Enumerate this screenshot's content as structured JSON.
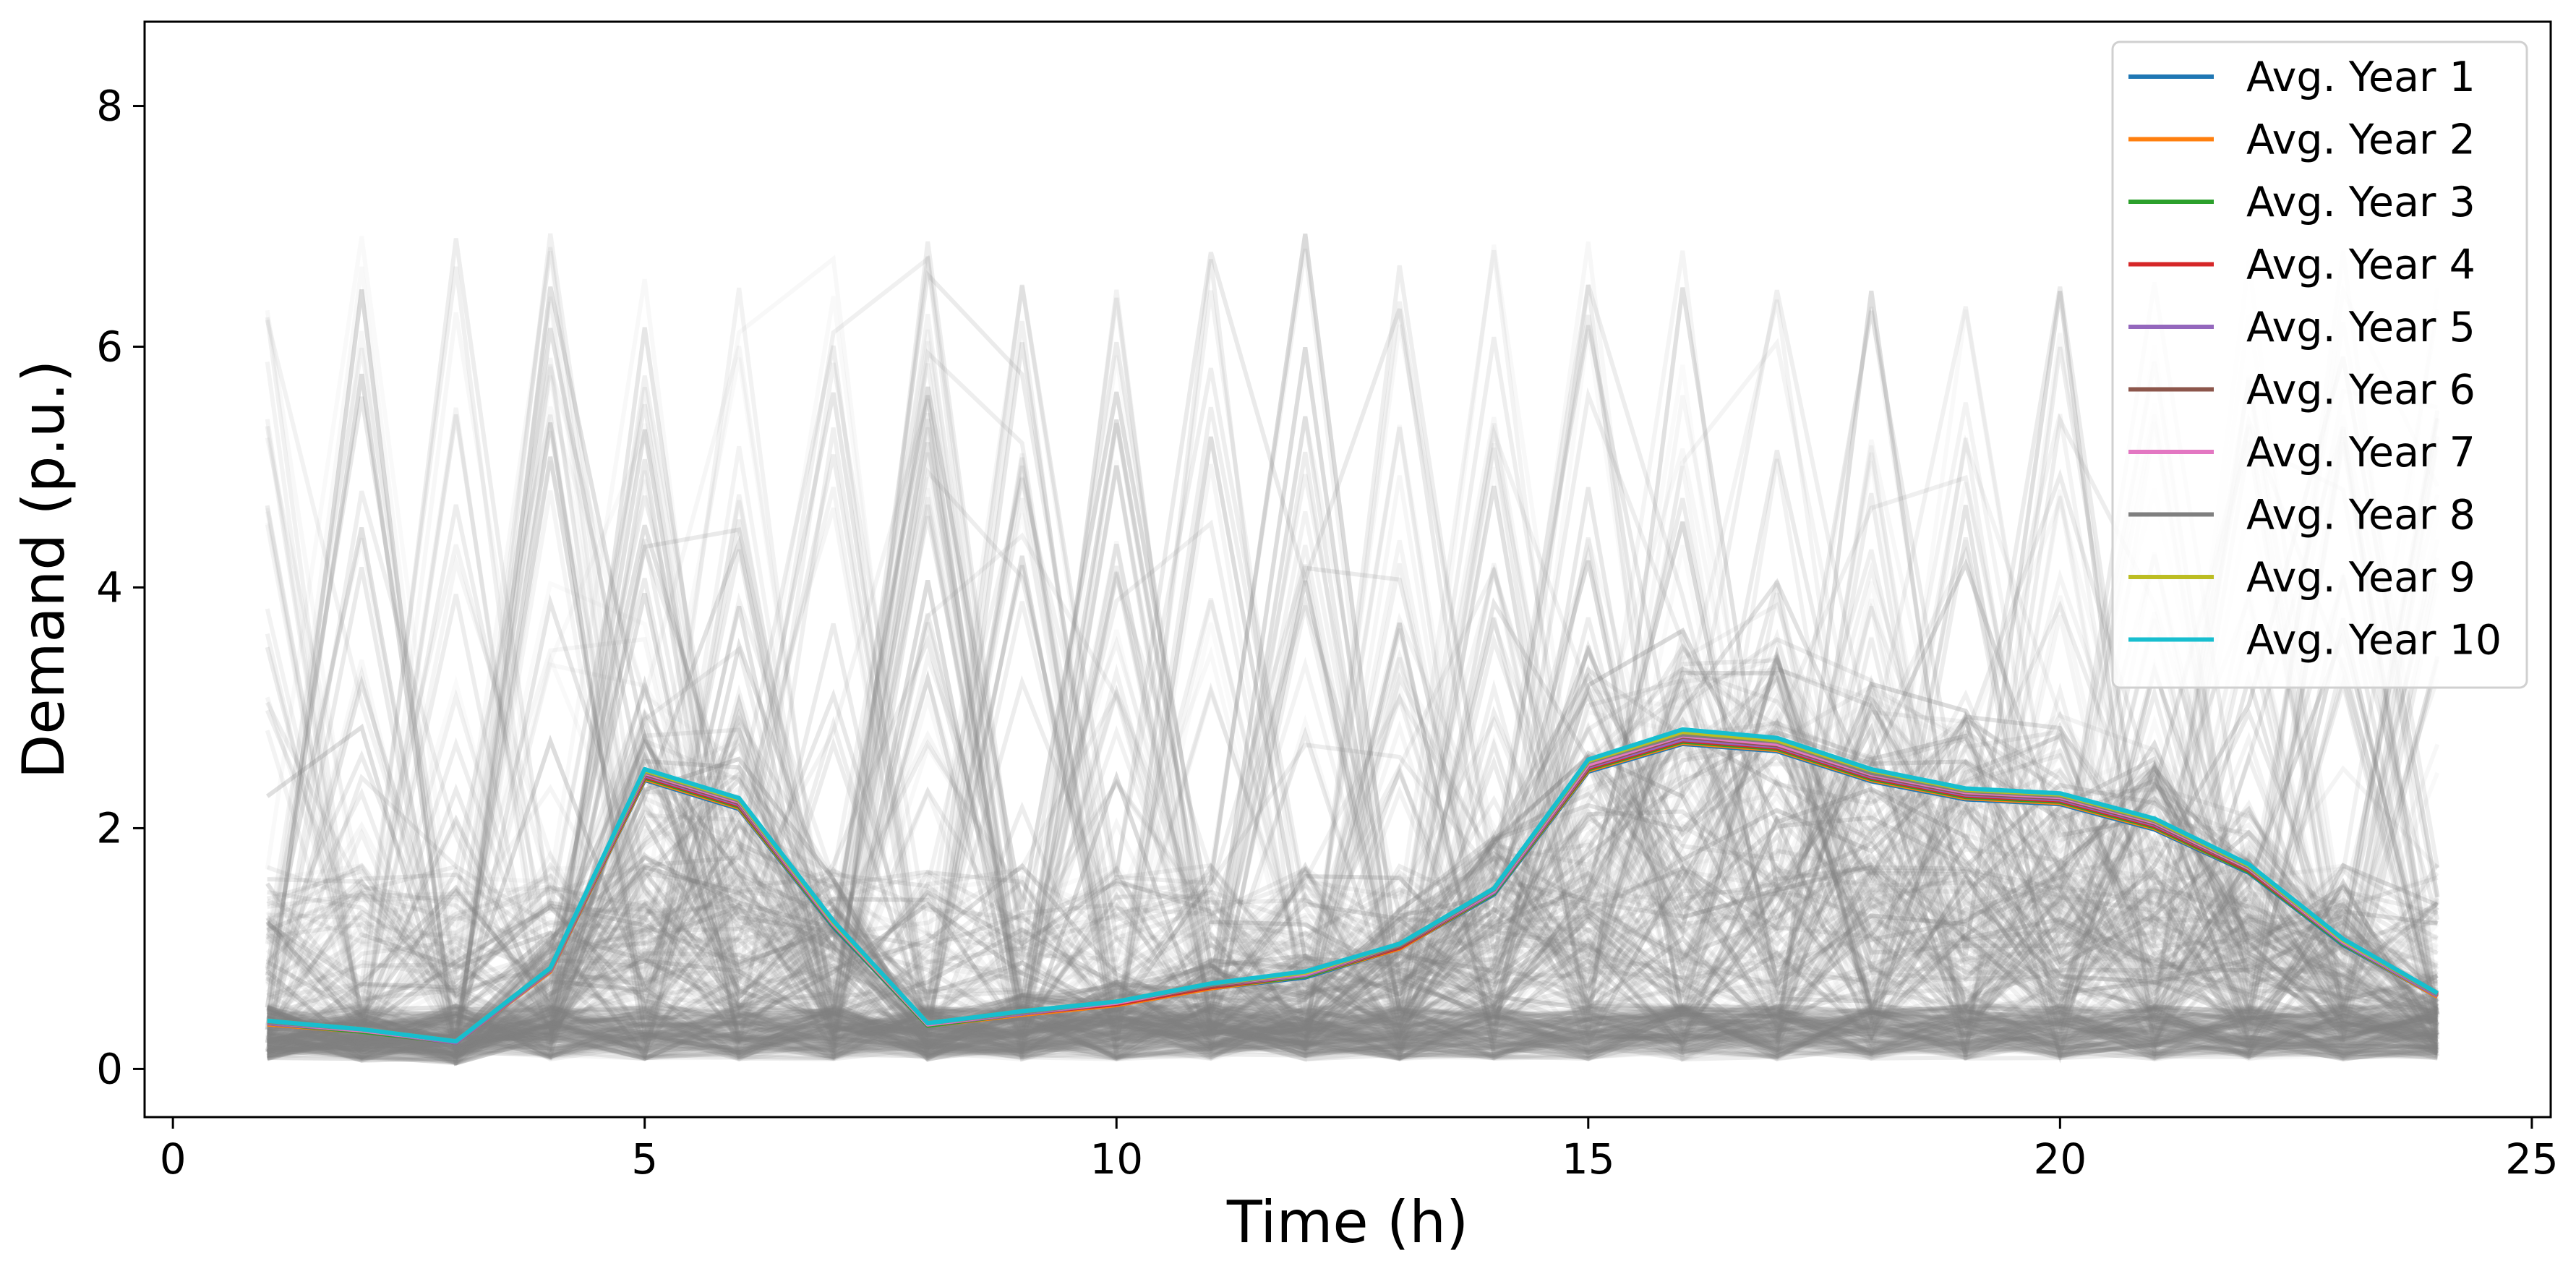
{
  "chart_data": {
    "type": "line",
    "title": "",
    "xlabel": "Time (h)",
    "ylabel": "Demand (p.u.)",
    "xlim": [
      -0.3,
      25.2
    ],
    "ylim": [
      -0.4,
      8.7
    ],
    "xticks": [
      0,
      5,
      10,
      15,
      20,
      25
    ],
    "yticks": [
      0,
      2,
      4,
      6,
      8
    ],
    "grid": false,
    "legend_position": "top-right",
    "x": [
      1,
      2,
      3,
      4,
      5,
      6,
      7,
      8,
      9,
      10,
      11,
      12,
      13,
      14,
      15,
      16,
      17,
      18,
      19,
      20,
      21,
      22,
      23,
      24
    ],
    "background_traces_color": "#808080",
    "series": [
      {
        "name": "Avg. Year 1",
        "color": "#1f77b4",
        "values": [
          0.37,
          0.31,
          0.22,
          0.81,
          2.4,
          2.16,
          1.18,
          0.36,
          0.45,
          0.53,
          0.67,
          0.76,
          1.0,
          1.45,
          2.47,
          2.7,
          2.64,
          2.39,
          2.24,
          2.2,
          1.99,
          1.63,
          1.03,
          0.6
        ]
      },
      {
        "name": "Avg. Year 2",
        "color": "#ff7f0e",
        "values": [
          0.37,
          0.31,
          0.22,
          0.81,
          2.41,
          2.17,
          1.19,
          0.36,
          0.45,
          0.53,
          0.67,
          0.77,
          1.0,
          1.46,
          2.48,
          2.71,
          2.65,
          2.4,
          2.25,
          2.21,
          2.0,
          1.64,
          1.04,
          0.6
        ]
      },
      {
        "name": "Avg. Year 3",
        "color": "#2ca02c",
        "values": [
          0.38,
          0.31,
          0.22,
          0.82,
          2.42,
          2.18,
          1.19,
          0.36,
          0.46,
          0.54,
          0.68,
          0.77,
          1.01,
          1.46,
          2.49,
          2.72,
          2.66,
          2.41,
          2.26,
          2.22,
          2.01,
          1.64,
          1.04,
          0.61
        ]
      },
      {
        "name": "Avg. Year 4",
        "color": "#d62728",
        "values": [
          0.38,
          0.32,
          0.22,
          0.82,
          2.43,
          2.19,
          1.2,
          0.37,
          0.46,
          0.54,
          0.68,
          0.78,
          1.01,
          1.47,
          2.5,
          2.73,
          2.67,
          2.42,
          2.27,
          2.23,
          2.02,
          1.65,
          1.05,
          0.61
        ]
      },
      {
        "name": "Avg. Year 5",
        "color": "#9467bd",
        "values": [
          0.38,
          0.32,
          0.22,
          0.82,
          2.44,
          2.2,
          1.2,
          0.37,
          0.46,
          0.55,
          0.69,
          0.78,
          1.02,
          1.47,
          2.51,
          2.74,
          2.68,
          2.43,
          2.28,
          2.24,
          2.03,
          1.66,
          1.05,
          0.61
        ]
      },
      {
        "name": "Avg. Year 6",
        "color": "#8c564b",
        "values": [
          0.39,
          0.32,
          0.23,
          0.83,
          2.45,
          2.21,
          1.21,
          0.37,
          0.47,
          0.55,
          0.69,
          0.79,
          1.02,
          1.48,
          2.52,
          2.76,
          2.69,
          2.44,
          2.29,
          2.25,
          2.04,
          1.66,
          1.06,
          0.62
        ]
      },
      {
        "name": "Avg. Year 7",
        "color": "#e377c2",
        "values": [
          0.39,
          0.32,
          0.23,
          0.83,
          2.46,
          2.22,
          1.21,
          0.37,
          0.47,
          0.55,
          0.7,
          0.79,
          1.03,
          1.48,
          2.53,
          2.77,
          2.7,
          2.45,
          2.3,
          2.26,
          2.05,
          1.67,
          1.06,
          0.62
        ]
      },
      {
        "name": "Avg. Year 8",
        "color": "#7f7f7f",
        "values": [
          0.39,
          0.33,
          0.23,
          0.83,
          2.47,
          2.23,
          1.22,
          0.38,
          0.47,
          0.56,
          0.7,
          0.8,
          1.03,
          1.49,
          2.55,
          2.78,
          2.72,
          2.46,
          2.31,
          2.27,
          2.06,
          1.68,
          1.07,
          0.62
        ]
      },
      {
        "name": "Avg. Year 9",
        "color": "#bcbd22",
        "values": [
          0.4,
          0.33,
          0.23,
          0.84,
          2.48,
          2.24,
          1.22,
          0.38,
          0.48,
          0.56,
          0.71,
          0.8,
          1.04,
          1.5,
          2.56,
          2.8,
          2.73,
          2.48,
          2.32,
          2.28,
          2.07,
          1.69,
          1.07,
          0.63
        ]
      },
      {
        "name": "Avg. Year 10",
        "color": "#17becf",
        "values": [
          0.4,
          0.33,
          0.23,
          0.84,
          2.49,
          2.25,
          1.23,
          0.38,
          0.48,
          0.56,
          0.71,
          0.81,
          1.04,
          1.5,
          2.57,
          2.82,
          2.75,
          2.49,
          2.33,
          2.29,
          2.08,
          1.7,
          1.08,
          0.63
        ]
      }
    ]
  }
}
